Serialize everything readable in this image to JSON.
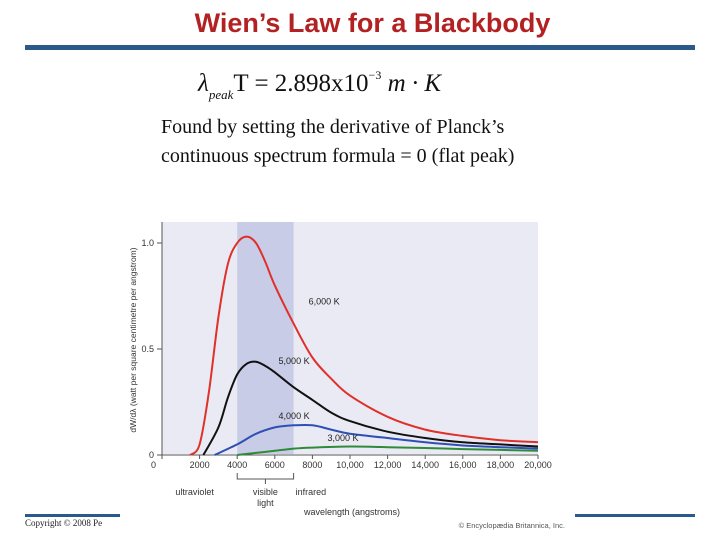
{
  "slide": {
    "title": "Wien’s Law for a Blackbody",
    "formula": {
      "lambda": "λ",
      "sub": "peak",
      "rest": "T = 2.898x10",
      "exp": "−3",
      "units": " m · K"
    },
    "body": "Found by setting the derivative of Planck’s continuous spectrum formula = 0 (flat peak)",
    "copyright": "Copyright © 2008 Pe"
  },
  "colors": {
    "title": "#b22222",
    "rule": "#2a5a8a",
    "visible_band": "#c9cce6",
    "plot_bg": "#eaeaf4"
  },
  "chart_data": {
    "type": "line",
    "xlabel": "wavelength (angstroms)",
    "ylabel": "dW/dλ (watt per square centimetre per angstrom)",
    "xlim": [
      0,
      20000
    ],
    "ylim": [
      0,
      1.0
    ],
    "x_ticks": [
      "0",
      "2000",
      "4000",
      "6000",
      "8000",
      "10,000",
      "12,000",
      "14,000",
      "16,000",
      "18,000",
      "20,000"
    ],
    "y_ticks": [
      "0",
      "0.5",
      "1.0"
    ],
    "regions": [
      {
        "label": "ultraviolet",
        "from": 0,
        "to": 4000
      },
      {
        "label": "visible light",
        "from": 4000,
        "to": 7000
      },
      {
        "label": "infrared",
        "from": 7000,
        "to": 20000
      }
    ],
    "credit": "© Encyclopædia Britannica, Inc.",
    "series": [
      {
        "name": "6,000 K",
        "color": "#e0302a",
        "points": [
          [
            1500,
            0
          ],
          [
            2000,
            0.05
          ],
          [
            2500,
            0.3
          ],
          [
            3000,
            0.65
          ],
          [
            3500,
            0.9
          ],
          [
            4000,
            1.0
          ],
          [
            4500,
            1.03
          ],
          [
            5000,
            1.0
          ],
          [
            5500,
            0.91
          ],
          [
            6000,
            0.8
          ],
          [
            7000,
            0.62
          ],
          [
            8000,
            0.46
          ],
          [
            9000,
            0.36
          ],
          [
            10000,
            0.28
          ],
          [
            12000,
            0.18
          ],
          [
            14000,
            0.12
          ],
          [
            16000,
            0.09
          ],
          [
            18000,
            0.07
          ],
          [
            20000,
            0.06
          ]
        ]
      },
      {
        "name": "5,000 K",
        "color": "#111111",
        "points": [
          [
            2200,
            0
          ],
          [
            3000,
            0.13
          ],
          [
            3500,
            0.27
          ],
          [
            4000,
            0.38
          ],
          [
            4500,
            0.43
          ],
          [
            5000,
            0.44
          ],
          [
            5500,
            0.42
          ],
          [
            6000,
            0.39
          ],
          [
            7000,
            0.32
          ],
          [
            8000,
            0.26
          ],
          [
            9000,
            0.2
          ],
          [
            10000,
            0.16
          ],
          [
            12000,
            0.11
          ],
          [
            14000,
            0.08
          ],
          [
            16000,
            0.06
          ],
          [
            18000,
            0.05
          ],
          [
            20000,
            0.04
          ]
        ]
      },
      {
        "name": "4,000 K",
        "color": "#2e4fb4",
        "points": [
          [
            2800,
            0
          ],
          [
            4000,
            0.05
          ],
          [
            5000,
            0.1
          ],
          [
            6000,
            0.13
          ],
          [
            7000,
            0.14
          ],
          [
            8000,
            0.14
          ],
          [
            9000,
            0.12
          ],
          [
            10000,
            0.1
          ],
          [
            12000,
            0.08
          ],
          [
            14000,
            0.06
          ],
          [
            16000,
            0.045
          ],
          [
            18000,
            0.037
          ],
          [
            20000,
            0.03
          ]
        ]
      },
      {
        "name": "3,000 K",
        "color": "#2f8a3a",
        "points": [
          [
            4000,
            0
          ],
          [
            5000,
            0.01
          ],
          [
            6000,
            0.02
          ],
          [
            7000,
            0.03
          ],
          [
            8000,
            0.035
          ],
          [
            10000,
            0.04
          ],
          [
            12000,
            0.037
          ],
          [
            14000,
            0.033
          ],
          [
            16000,
            0.028
          ],
          [
            18000,
            0.024
          ],
          [
            20000,
            0.02
          ]
        ]
      }
    ]
  }
}
